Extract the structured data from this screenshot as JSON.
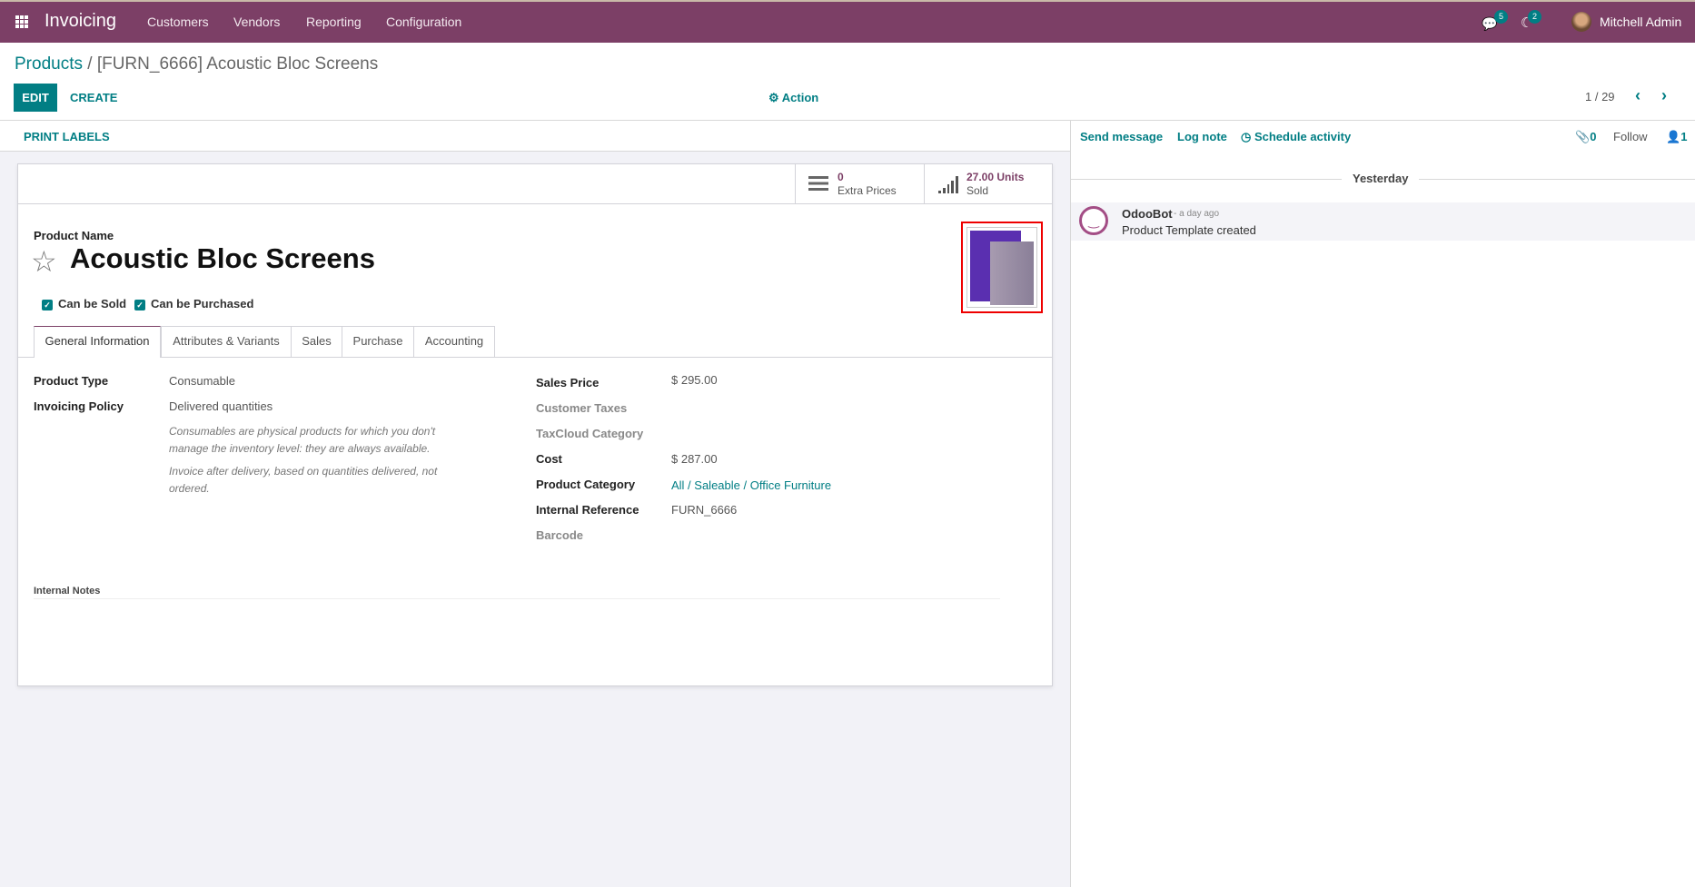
{
  "navbar": {
    "app_title": "Invoicing",
    "menu": [
      "Customers",
      "Vendors",
      "Reporting",
      "Configuration"
    ],
    "messages_count": "5",
    "activities_count": "2",
    "user_name": "Mitchell Admin",
    "brand_color": "#7c3f66"
  },
  "breadcrumb": {
    "parent": "Products",
    "separator": "/",
    "current": "[FURN_6666] Acoustic Bloc Screens"
  },
  "toolbar": {
    "edit": "EDIT",
    "create": "CREATE",
    "action": "Action",
    "pager": "1 / 29"
  },
  "statusbar": {
    "print_labels": "PRINT LABELS"
  },
  "smart_buttons": [
    {
      "value": "0",
      "label": "Extra Prices",
      "icon": "list-icon"
    },
    {
      "value": "27.00 Units",
      "label": "Sold",
      "icon": "signal-icon"
    }
  ],
  "product": {
    "name_label": "Product Name",
    "name": "Acoustic Bloc Screens",
    "can_be_sold": "Can be Sold",
    "can_be_purchased": "Can be Purchased",
    "sold_checked": true,
    "purchased_checked": true
  },
  "tabs": [
    "General Information",
    "Attributes & Variants",
    "Sales",
    "Purchase",
    "Accounting"
  ],
  "active_tab": "General Information",
  "general": {
    "left": [
      {
        "label": "Product Type",
        "value": "Consumable"
      },
      {
        "label": "Invoicing Policy",
        "value": "Delivered quantities"
      }
    ],
    "help1": "Consumables are physical products for which you don't manage the inventory level: they are always available.",
    "help2": "Invoice after delivery, based on quantities delivered, not ordered.",
    "right": [
      {
        "label": "Sales Price",
        "value": "$ 295.00"
      },
      {
        "label": "Customer Taxes",
        "value": ""
      },
      {
        "label": "TaxCloud Category",
        "value": ""
      },
      {
        "label": "Cost",
        "value": "$ 287.00"
      },
      {
        "label": "Product Category",
        "value": "All / Saleable / Office Furniture"
      },
      {
        "label": "Internal Reference",
        "value": "FURN_6666"
      },
      {
        "label": "Barcode",
        "value": ""
      }
    ],
    "internal_notes": "Internal Notes"
  },
  "chatter": {
    "send_message": "Send message",
    "log_note": "Log note",
    "schedule_activity": "Schedule activity",
    "attachments": "0",
    "follow": "Follow",
    "followers": "1",
    "date_separator": "Yesterday",
    "messages": [
      {
        "author": "OdooBot",
        "time": "- a day ago",
        "body": "Product Template created"
      }
    ]
  }
}
